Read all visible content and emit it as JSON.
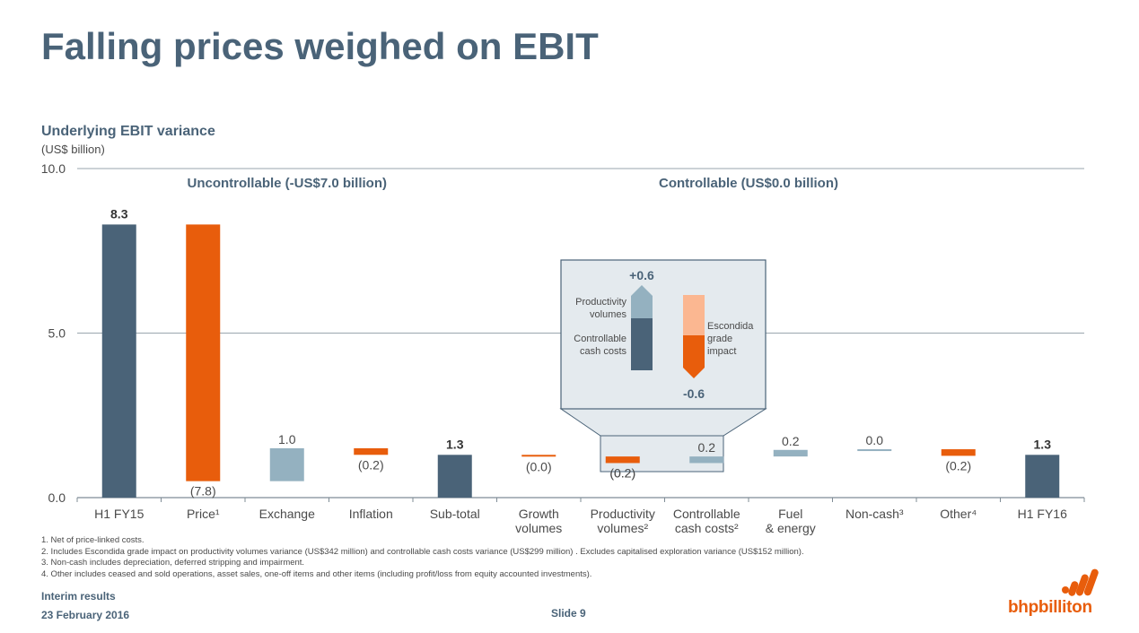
{
  "page": {
    "title": "Falling prices weighed on EBIT",
    "subtitle": "Underlying EBIT variance",
    "units": "(US$ billion)",
    "footnotes": [
      "1.  Net of price-linked costs.",
      "2.  Includes Escondida grade impact on productivity volumes variance (US$342 million) and controllable cash costs variance (US$299 million) . Excludes capitalised exploration variance (US$152 million).",
      "3.  Non-cash includes depreciation, deferred stripping and impairment.",
      "4.  Other includes ceased and sold operations, asset sales, one-off items and other items (including profit/loss from equity accounted investments)."
    ],
    "footer": {
      "line1": "Interim results",
      "line2": "23 February 2016",
      "slide": "Slide 9"
    },
    "logo_text": "bhpbilliton"
  },
  "colors": {
    "total": "#4a6378",
    "negative": "#e85d0c",
    "positive": "#94b1c0",
    "inset_bg": "#e4eaee",
    "light_orange": "#fbb791"
  },
  "chart_data": {
    "type": "bar",
    "subtype": "waterfall",
    "title": "Underlying EBIT variance",
    "ylabel": "(US$ billion)",
    "ylim": [
      0,
      10
    ],
    "y_ticks": [
      "0.0",
      "5.0",
      "10.0"
    ],
    "y_tick_values": [
      0,
      5,
      10
    ],
    "group_labels": [
      "Uncontrollable (-US$7.0 billion)",
      "Controllable (US$0.0 billion)"
    ],
    "bars": [
      {
        "category": "H1 FY15",
        "label": "H1 FY15",
        "kind": "total",
        "start": 0,
        "end": 8.3,
        "value_label": "8.3"
      },
      {
        "category": "Price¹",
        "label": "Price¹",
        "kind": "negative",
        "start": 8.3,
        "end": 0.5,
        "value_label": "(7.8)"
      },
      {
        "category": "Exchange",
        "label": "Exchange",
        "kind": "positive",
        "start": 0.5,
        "end": 1.5,
        "value_label": "1.0"
      },
      {
        "category": "Inflation",
        "label": "Inflation",
        "kind": "negative",
        "start": 1.5,
        "end": 1.3,
        "value_label": "(0.2)"
      },
      {
        "category": "Sub-total",
        "label": "Sub-total",
        "kind": "total",
        "start": 0,
        "end": 1.3,
        "value_label": "1.3"
      },
      {
        "category": "Growth volumes",
        "label": "Growth volumes",
        "kind": "negative",
        "start": 1.3,
        "end": 1.25,
        "value_label": "(0.0)"
      },
      {
        "category": "Productivity volumes²",
        "label": "Productivity volumes²",
        "kind": "negative",
        "start": 1.25,
        "end": 1.05,
        "value_label": "(0.2)"
      },
      {
        "category": "Controllable cash costs²",
        "label": "Controllable cash costs²",
        "kind": "positive",
        "start": 1.05,
        "end": 1.25,
        "value_label": "0.2"
      },
      {
        "category": "Fuel & energy",
        "label": "Fuel & energy",
        "kind": "positive",
        "start": 1.25,
        "end": 1.45,
        "value_label": "0.2"
      },
      {
        "category": "Non-cash³",
        "label": "Non-cash³",
        "kind": "positive",
        "start": 1.45,
        "end": 1.47,
        "value_label": "0.0"
      },
      {
        "category": "Other⁴",
        "label": "Other⁴",
        "kind": "negative",
        "start": 1.47,
        "end": 1.27,
        "value_label": "(0.2)"
      },
      {
        "category": "H1 FY16",
        "label": "H1 FY16",
        "kind": "total",
        "start": 0,
        "end": 1.3,
        "value_label": "1.3"
      }
    ],
    "inset": {
      "up_label": "+0.6",
      "down_label": "-0.6",
      "up_segments": [
        "Productivity volumes",
        "Controllable cash costs"
      ],
      "down_segment": "Escondida grade impact"
    }
  }
}
